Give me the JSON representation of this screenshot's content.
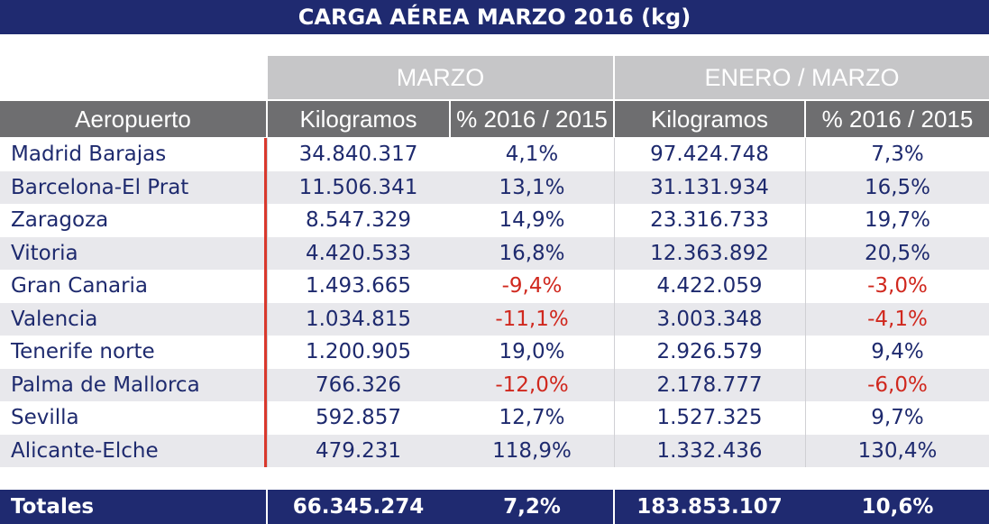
{
  "title": "CARGA AÉREA MARZO 2016 (kg)",
  "table": {
    "groups": [
      "MARZO",
      "ENERO / MARZO"
    ],
    "header": [
      "Aeropuerto",
      "Kilogramos",
      "% 2016 / 2015",
      "Kilogramos",
      "% 2016 / 2015"
    ],
    "rows": [
      [
        "Madrid Barajas",
        "34.840.317",
        "4,1%",
        "97.424.748",
        "7,3%"
      ],
      [
        "Barcelona-El Prat",
        "11.506.341",
        "13,1%",
        "31.131.934",
        "16,5%"
      ],
      [
        "Zaragoza",
        "8.547.329",
        "14,9%",
        "23.316.733",
        "19,7%"
      ],
      [
        "Vitoria",
        "4.420.533",
        "16,8%",
        "12.363.892",
        "20,5%"
      ],
      [
        "Gran Canaria",
        "1.493.665",
        "-9,4%",
        "4.422.059",
        "-3,0%"
      ],
      [
        "Valencia",
        "1.034.815",
        "-11,1%",
        "3.003.348",
        "-4,1%"
      ],
      [
        "Tenerife norte",
        "1.200.905",
        "19,0%",
        "2.926.579",
        "9,4%"
      ],
      [
        "Palma de Mallorca",
        "766.326",
        "-12,0%",
        "2.178.777",
        "-6,0%"
      ],
      [
        "Sevilla",
        "592.857",
        "12,7%",
        "1.527.325",
        "9,7%"
      ],
      [
        "Alicante-Elche",
        "479.231",
        "118,9%",
        "1.332.436",
        "130,4%"
      ]
    ],
    "totals": [
      "Totales",
      "66.345.274",
      "7,2%",
      "183.853.107",
      "10,6%"
    ]
  }
}
